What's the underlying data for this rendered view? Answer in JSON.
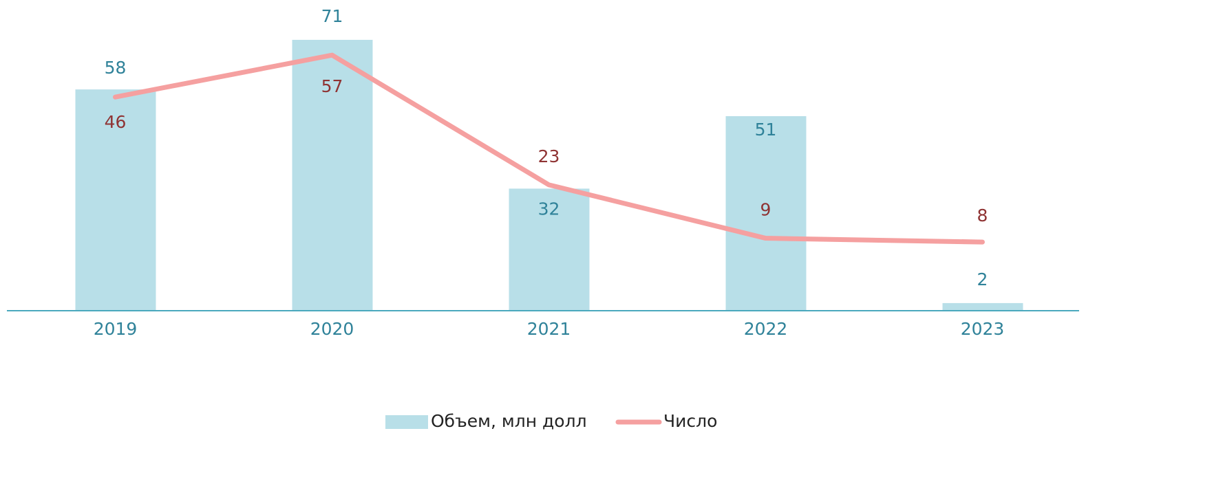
{
  "chart_data": {
    "type": "bar-line",
    "categories": [
      "2019",
      "2020",
      "2021",
      "2022",
      "2023"
    ],
    "series": [
      {
        "name": "Объем, млн долл",
        "type": "bar",
        "color": "#b8dfe8",
        "label_color": "#2f8299",
        "values": [
          58,
          71,
          32,
          51,
          2
        ]
      },
      {
        "name": "Число",
        "type": "line",
        "axis": "y2",
        "color": "#f5a0a0",
        "label_color": "#8f3333",
        "values": [
          46,
          57,
          23,
          9,
          8
        ]
      }
    ],
    "ylim": [
      0,
      80
    ],
    "y2lim": [
      -10,
      70
    ],
    "legend": "bottom"
  }
}
